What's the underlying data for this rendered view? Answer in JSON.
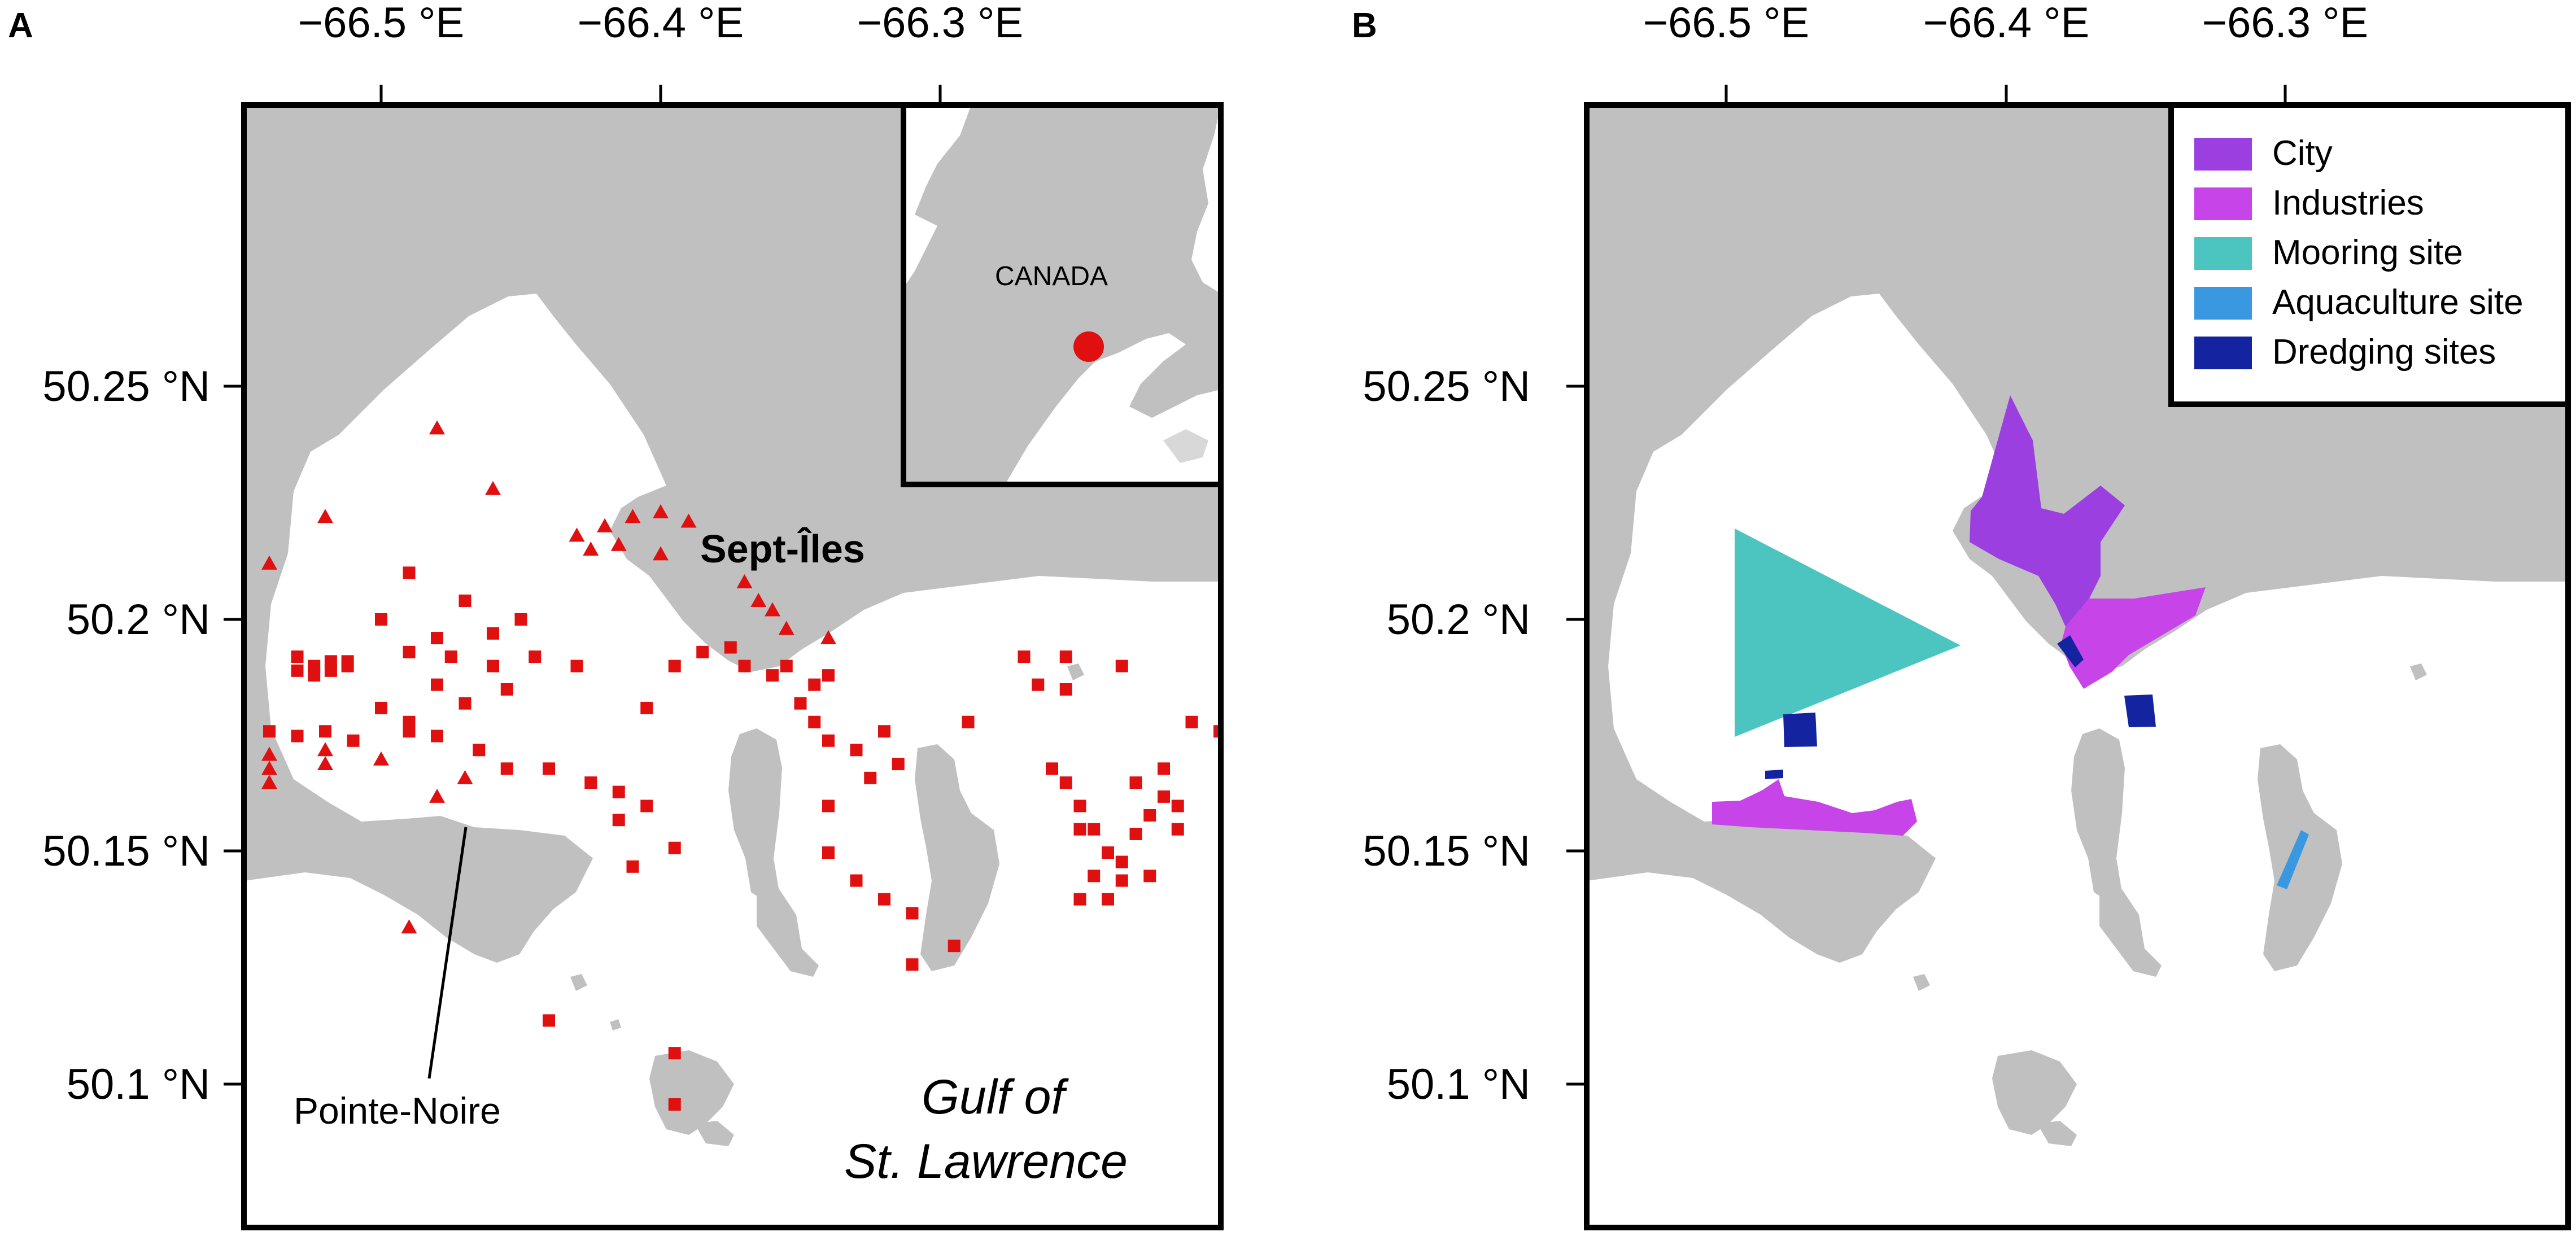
{
  "panels": {
    "a": {
      "letter": "A",
      "places": {
        "town": "Sept-Îles",
        "point": "Pointe-Noire",
        "gulf_line1": "Gulf of",
        "gulf_line2": "St. Lawrence"
      },
      "inset": {
        "country": "CANADA"
      }
    },
    "b": {
      "letter": "B",
      "legend": [
        {
          "label": "City",
          "color": "#9b3fe0"
        },
        {
          "label": "Industries",
          "color": "#c744e8"
        },
        {
          "label": "Mooring site",
          "color": "#4cc4c0"
        },
        {
          "label": "Aquaculture site",
          "color": "#3a98e0"
        },
        {
          "label": "Dredging sites",
          "color": "#1423a0"
        }
      ]
    }
  },
  "axes": {
    "x_ticks": [
      "−66.5 °E",
      "−66.4 °E",
      "−66.3 °E"
    ],
    "y_ticks": [
      "50.25 °N",
      "50.2 °N",
      "50.15 °N",
      "50.1 °N"
    ]
  },
  "colors": {
    "land": "#c0c0c0",
    "water": "#ffffff",
    "sample_marker": "#e01010",
    "frame": "#000000"
  },
  "sampling_stations": {
    "triangles": [
      [
        -66.48,
        50.241
      ],
      [
        -66.52,
        50.222
      ],
      [
        -66.46,
        50.228
      ],
      [
        -66.54,
        50.212
      ],
      [
        -66.56,
        50.184
      ],
      [
        -66.52,
        50.172
      ],
      [
        -66.52,
        50.169
      ],
      [
        -66.43,
        50.218
      ],
      [
        -66.42,
        50.22
      ],
      [
        -66.41,
        50.222
      ],
      [
        -66.4,
        50.223
      ],
      [
        -66.39,
        50.221
      ],
      [
        -66.415,
        50.216
      ],
      [
        -66.425,
        50.215
      ],
      [
        -66.4,
        50.214
      ],
      [
        -66.37,
        50.208
      ],
      [
        -66.365,
        50.204
      ],
      [
        -66.36,
        50.202
      ],
      [
        -66.355,
        50.198
      ],
      [
        -66.34,
        50.196
      ],
      [
        -66.54,
        50.171
      ],
      [
        -66.54,
        50.168
      ],
      [
        -66.54,
        50.165
      ],
      [
        -66.5,
        50.17
      ],
      [
        -66.47,
        50.166
      ],
      [
        -66.48,
        50.162
      ],
      [
        -66.49,
        50.134
      ]
    ],
    "squares": [
      [
        -66.53,
        50.192
      ],
      [
        -66.524,
        50.19
      ],
      [
        -66.518,
        50.191
      ],
      [
        -66.512,
        50.19
      ],
      [
        -66.53,
        50.189
      ],
      [
        -66.524,
        50.188
      ],
      [
        -66.518,
        50.189
      ],
      [
        -66.512,
        50.191
      ],
      [
        -66.49,
        50.21
      ],
      [
        -66.5,
        50.2
      ],
      [
        -66.47,
        50.204
      ],
      [
        -66.48,
        50.196
      ],
      [
        -66.46,
        50.197
      ],
      [
        -66.45,
        50.2
      ],
      [
        -66.49,
        50.193
      ],
      [
        -66.475,
        50.192
      ],
      [
        -66.46,
        50.19
      ],
      [
        -66.445,
        50.192
      ],
      [
        -66.48,
        50.186
      ],
      [
        -66.47,
        50.182
      ],
      [
        -66.455,
        50.185
      ],
      [
        -66.43,
        50.19
      ],
      [
        -66.5,
        50.181
      ],
      [
        -66.49,
        50.178
      ],
      [
        -66.54,
        50.176
      ],
      [
        -66.53,
        50.175
      ],
      [
        -66.52,
        50.176
      ],
      [
        -66.51,
        50.174
      ],
      [
        -66.49,
        50.176
      ],
      [
        -66.48,
        50.175
      ],
      [
        -66.465,
        50.172
      ],
      [
        -66.455,
        50.168
      ],
      [
        -66.44,
        50.168
      ],
      [
        -66.425,
        50.165
      ],
      [
        -66.415,
        50.163
      ],
      [
        -66.415,
        50.157
      ],
      [
        -66.41,
        50.147
      ],
      [
        -66.405,
        50.16
      ],
      [
        -66.395,
        50.151
      ],
      [
        -66.405,
        50.181
      ],
      [
        -66.395,
        50.19
      ],
      [
        -66.385,
        50.193
      ],
      [
        -66.375,
        50.194
      ],
      [
        -66.37,
        50.19
      ],
      [
        -66.36,
        50.188
      ],
      [
        -66.355,
        50.19
      ],
      [
        -66.345,
        50.186
      ],
      [
        -66.34,
        50.188
      ],
      [
        -66.35,
        50.182
      ],
      [
        -66.345,
        50.178
      ],
      [
        -66.34,
        50.174
      ],
      [
        -66.33,
        50.172
      ],
      [
        -66.34,
        50.16
      ],
      [
        -66.34,
        50.15
      ],
      [
        -66.33,
        50.144
      ],
      [
        -66.32,
        50.14
      ],
      [
        -66.31,
        50.137
      ],
      [
        -66.31,
        50.126
      ],
      [
        -66.295,
        50.13
      ],
      [
        -66.32,
        50.176
      ],
      [
        -66.315,
        50.169
      ],
      [
        -66.325,
        50.166
      ],
      [
        -66.29,
        50.178
      ],
      [
        -66.27,
        50.192
      ],
      [
        -66.265,
        50.186
      ],
      [
        -66.255,
        50.192
      ],
      [
        -66.255,
        50.185
      ],
      [
        -66.235,
        50.19
      ],
      [
        -66.26,
        50.168
      ],
      [
        -66.25,
        50.16
      ],
      [
        -66.245,
        50.155
      ],
      [
        -66.24,
        50.15
      ],
      [
        -66.235,
        50.148
      ],
      [
        -66.23,
        50.154
      ],
      [
        -66.225,
        50.158
      ],
      [
        -66.22,
        50.162
      ],
      [
        -66.215,
        50.16
      ],
      [
        -66.215,
        50.155
      ],
      [
        -66.225,
        50.145
      ],
      [
        -66.235,
        50.144
      ],
      [
        -66.24,
        50.14
      ],
      [
        -66.25,
        50.14
      ],
      [
        -66.245,
        50.145
      ],
      [
        -66.25,
        50.155
      ],
      [
        -66.255,
        50.165
      ],
      [
        -66.2,
        50.176
      ],
      [
        -66.21,
        50.178
      ],
      [
        -66.22,
        50.168
      ],
      [
        -66.23,
        50.165
      ],
      [
        -66.44,
        50.114
      ],
      [
        -66.395,
        50.107
      ],
      [
        -66.395,
        50.096
      ]
    ]
  }
}
